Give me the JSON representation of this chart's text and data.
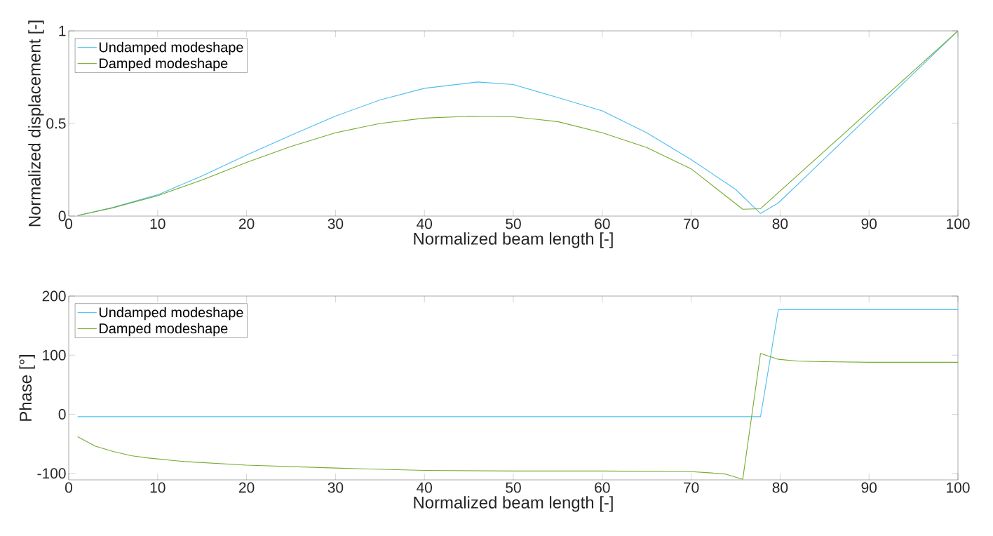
{
  "chart_data": [
    {
      "type": "line",
      "xlabel": "Normalized beam length [-]",
      "ylabel": "Normalized displacement [-]",
      "xlim": [
        0,
        100
      ],
      "ylim": [
        0,
        1
      ],
      "xticks": [
        0,
        10,
        20,
        30,
        40,
        50,
        60,
        70,
        80,
        90,
        100
      ],
      "yticks": [
        0,
        0.5,
        1
      ],
      "legend": "top left",
      "marker": "none",
      "line_style": "solid",
      "series": [
        {
          "name": "Undamped modeshape",
          "color": "#4dbeee",
          "x": [
            1,
            5,
            10,
            15,
            20,
            25,
            30,
            35,
            40,
            46,
            50,
            55,
            60,
            65,
            70,
            75,
            77.8,
            79.8,
            100
          ],
          "values": [
            0.003,
            0.047,
            0.115,
            0.217,
            0.33,
            0.437,
            0.54,
            0.627,
            0.69,
            0.724,
            0.71,
            0.64,
            0.568,
            0.45,
            0.305,
            0.144,
            0.014,
            0.071,
            1
          ]
        },
        {
          "name": "Damped modeshape",
          "color": "#77ac30",
          "x": [
            1,
            5,
            10,
            15,
            20,
            25,
            30,
            35,
            40,
            45,
            50,
            55,
            60,
            65,
            70,
            75.8,
            77.8,
            100
          ],
          "values": [
            0.003,
            0.045,
            0.11,
            0.195,
            0.29,
            0.376,
            0.45,
            0.5,
            0.529,
            0.539,
            0.536,
            0.51,
            0.45,
            0.37,
            0.255,
            0.037,
            0.04,
            1
          ]
        }
      ]
    },
    {
      "type": "line",
      "xlabel": "Normalized beam length [-]",
      "ylabel": "Phase [°]",
      "xlim": [
        0,
        100
      ],
      "ylim": [
        -111,
        200
      ],
      "xticks": [
        0,
        10,
        20,
        30,
        40,
        50,
        60,
        70,
        80,
        90,
        100
      ],
      "yticks": [
        -100,
        0,
        100,
        200
      ],
      "legend": "top left",
      "marker": "none",
      "line_style": "solid",
      "series": [
        {
          "name": "Undamped modeshape",
          "color": "#4dbeee",
          "x": [
            1,
            77.8,
            79.8,
            100
          ],
          "values": [
            -4,
            -4,
            177,
            177
          ]
        },
        {
          "name": "Damped modeshape",
          "color": "#77ac30",
          "x": [
            1,
            3,
            5,
            7,
            9,
            13,
            20,
            30,
            40,
            50,
            60,
            70,
            72,
            73.8,
            75.8,
            77.8,
            79.8,
            82,
            85,
            90,
            100
          ],
          "values": [
            -38,
            -54,
            -63,
            -70,
            -74,
            -80,
            -86,
            -91,
            -95,
            -96,
            -96,
            -97,
            -99,
            -101,
            -110,
            103,
            93,
            90,
            89,
            88,
            88
          ]
        }
      ]
    }
  ]
}
